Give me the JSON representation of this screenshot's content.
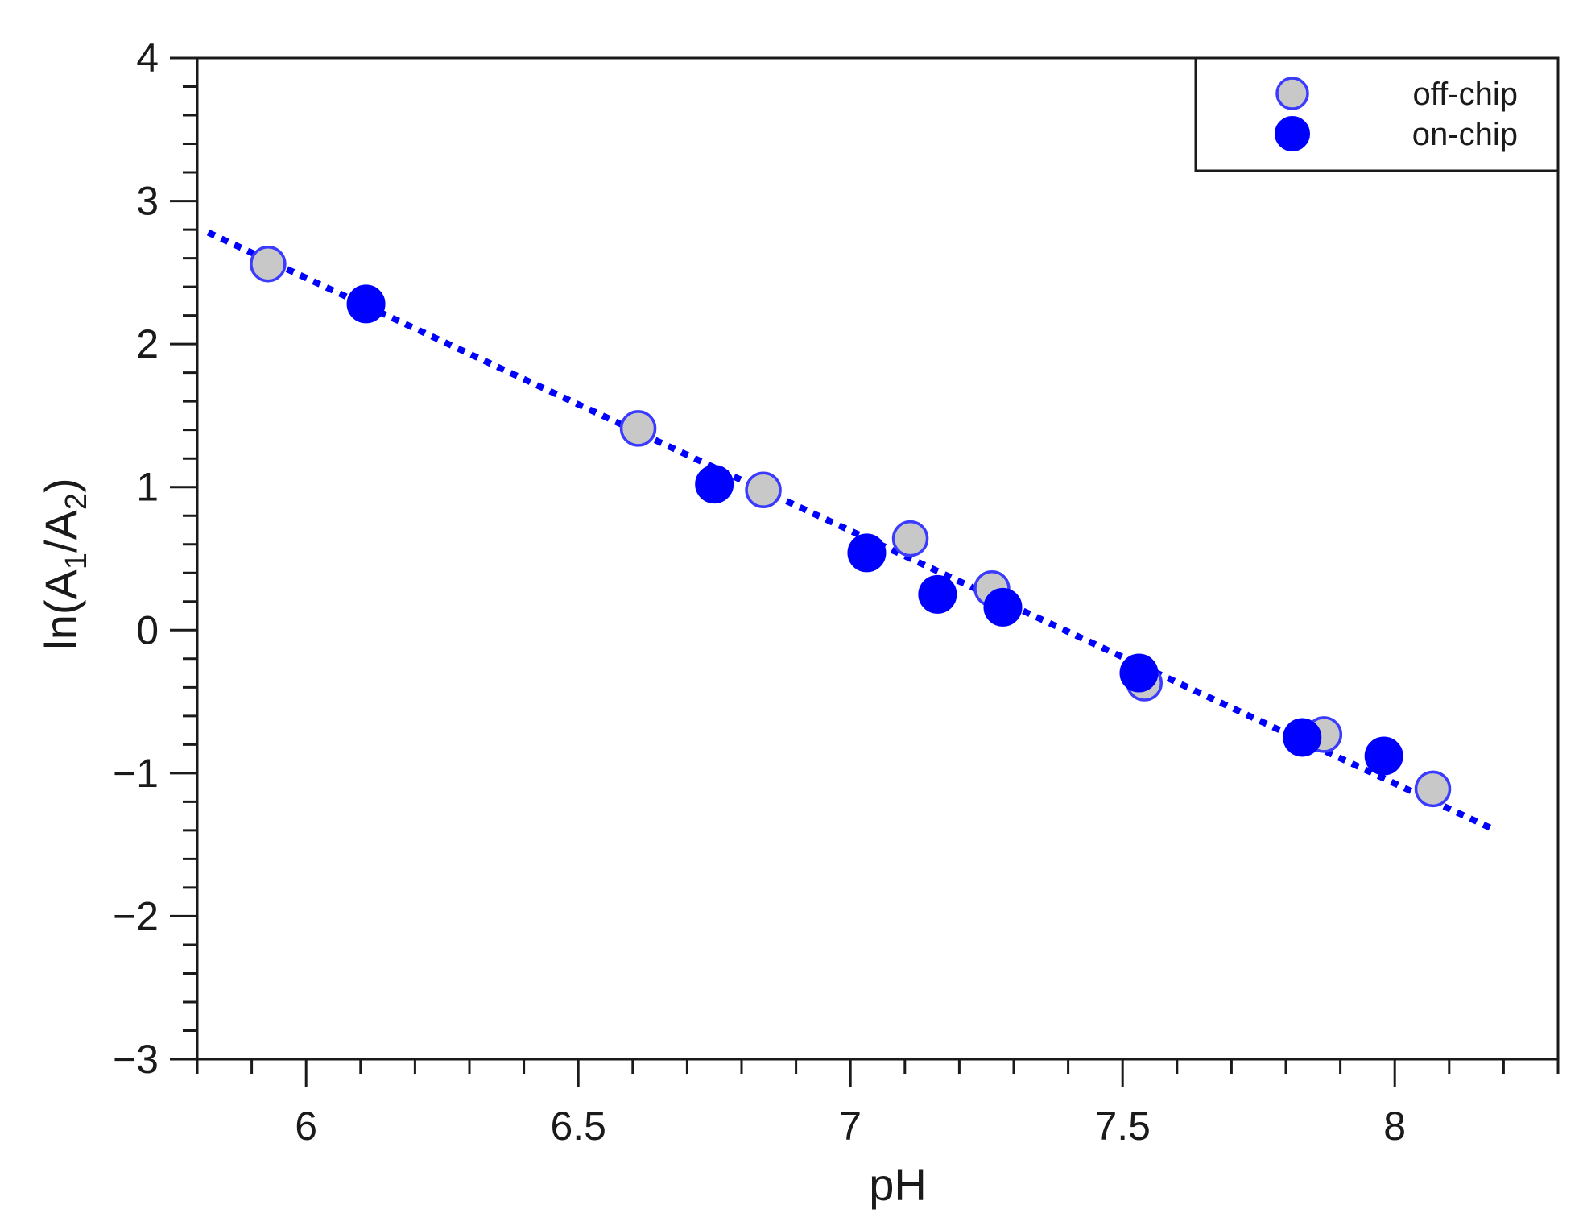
{
  "chart_data": {
    "type": "scatter",
    "xlabel": "pH",
    "ylabel": {
      "prefix": "ln(A",
      "sub1": "1",
      "middle": "/A",
      "sub2": "2",
      "suffix": ")"
    },
    "xlim": [
      5.8,
      8.3
    ],
    "ylim": [
      -3,
      4
    ],
    "x_ticks": [
      6,
      6.5,
      7,
      7.5,
      8
    ],
    "x_tick_labels": [
      "6",
      "6.5",
      "7",
      "7.5",
      "8"
    ],
    "x_minor_step": 0.1,
    "y_ticks": [
      -3,
      -2,
      -1,
      0,
      1,
      2,
      3,
      4
    ],
    "y_tick_labels": [
      "−3",
      "−2",
      "−1",
      "0",
      "1",
      "2",
      "3",
      "4"
    ],
    "y_minor_step": 0.2,
    "grid": false,
    "legend_position": "top-right",
    "series": [
      {
        "name": "off-chip",
        "marker": "hollow-circle",
        "fill_color": "#c8c8c8",
        "edge_color": "#3b3bff",
        "points": [
          [
            5.93,
            2.56
          ],
          [
            6.61,
            1.41
          ],
          [
            6.84,
            0.98
          ],
          [
            7.11,
            0.64
          ],
          [
            7.26,
            0.29
          ],
          [
            7.54,
            -0.37
          ],
          [
            7.87,
            -0.73
          ],
          [
            8.07,
            -1.11
          ]
        ]
      },
      {
        "name": "on-chip",
        "marker": "filled-circle",
        "fill_color": "#0000ff",
        "edge_color": "#0000ff",
        "points": [
          [
            6.11,
            2.28
          ],
          [
            6.75,
            1.02
          ],
          [
            7.03,
            0.54
          ],
          [
            7.16,
            0.25
          ],
          [
            7.28,
            0.16
          ],
          [
            7.53,
            -0.3
          ],
          [
            7.83,
            -0.75
          ],
          [
            7.98,
            -0.88
          ]
        ]
      }
    ],
    "fit_line": {
      "style": "dotted",
      "color": "#0000ff",
      "points": [
        [
          5.82,
          2.78
        ],
        [
          8.18,
          -1.39
        ]
      ]
    }
  }
}
